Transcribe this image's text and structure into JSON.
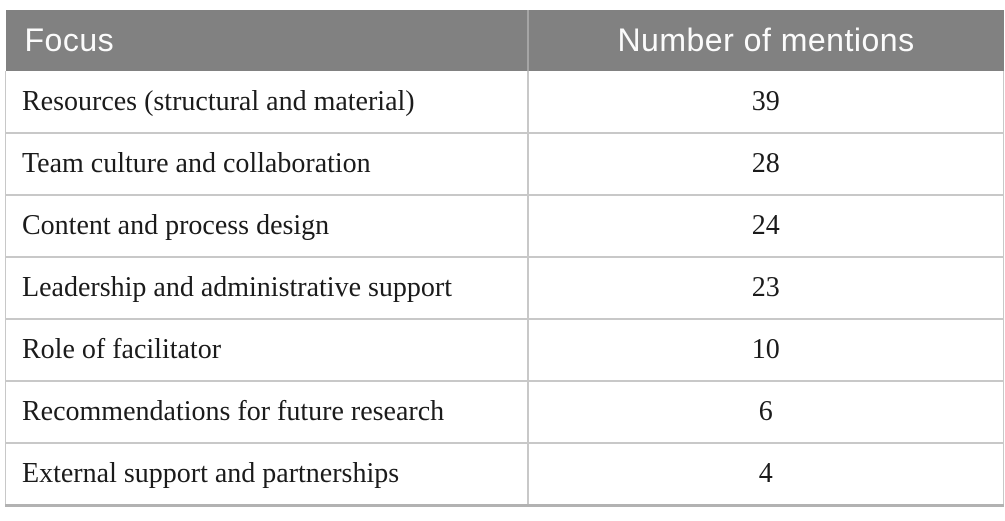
{
  "table": {
    "columns": [
      {
        "label": "Focus"
      },
      {
        "label": "Number of mentions"
      }
    ],
    "rows": [
      {
        "focus": "Resources (structural and material)",
        "mentions": "39"
      },
      {
        "focus": "Team culture and collaboration",
        "mentions": "28"
      },
      {
        "focus": "Content and process design",
        "mentions": "24"
      },
      {
        "focus": "Leadership and administrative support",
        "mentions": "23"
      },
      {
        "focus": "Role of facilitator",
        "mentions": "10"
      },
      {
        "focus": "Recommendations for future research",
        "mentions": "6"
      },
      {
        "focus": "External support and partnerships",
        "mentions": "4"
      }
    ],
    "colors": {
      "header_bg": "#818181",
      "header_text": "#fbfbfb",
      "header_divider": "#a5a5a5",
      "grid_line": "#c8c8c8",
      "bottom_rule": "#b2b2b2",
      "body_text": "#1b1b1b"
    }
  },
  "chart_data": {
    "type": "table",
    "columns": [
      "Focus",
      "Number of mentions"
    ],
    "rows": [
      [
        "Resources (structural and material)",
        39
      ],
      [
        "Team culture and collaboration",
        28
      ],
      [
        "Content and process design",
        24
      ],
      [
        "Leadership and administrative support",
        23
      ],
      [
        "Role of facilitator",
        10
      ],
      [
        "Recommendations for future research",
        6
      ],
      [
        "External support and partnerships",
        4
      ]
    ]
  }
}
